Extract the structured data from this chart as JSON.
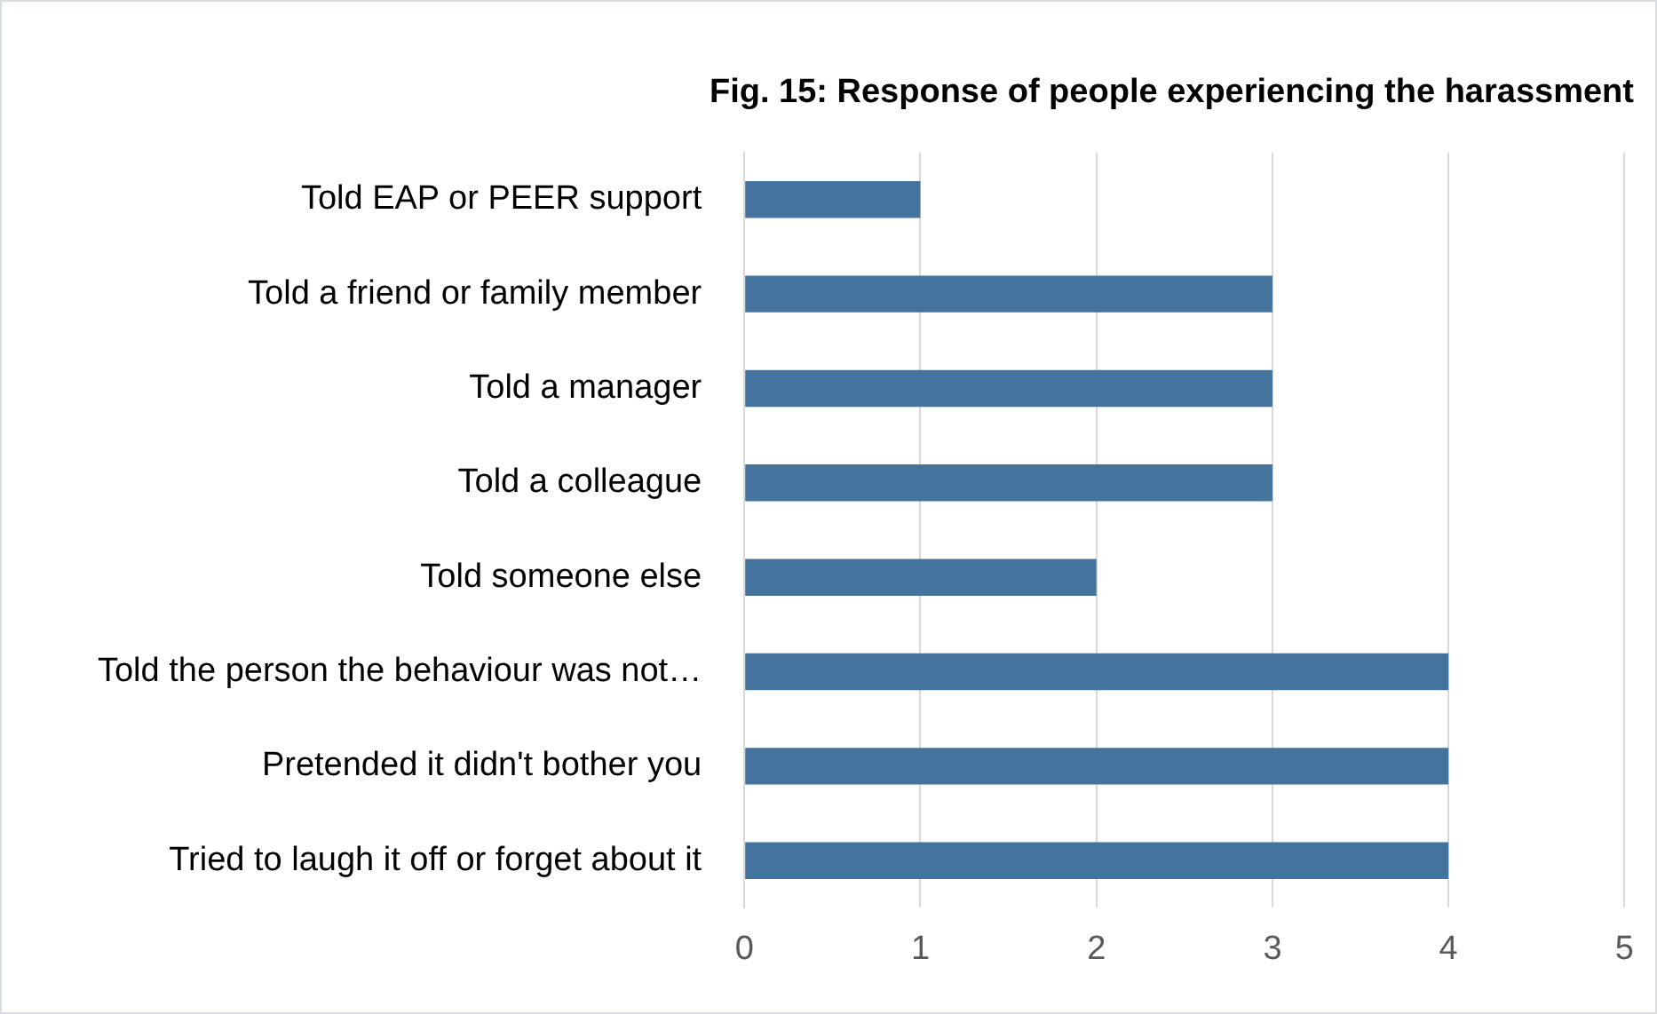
{
  "chart_data": {
    "type": "bar",
    "orientation": "horizontal",
    "title": "Fig. 15: Response of people experiencing the harassment",
    "categories": [
      "Told EAP or PEER support",
      "Told a friend or family member",
      "Told a manager",
      "Told a colleague",
      "Told someone else",
      "Told the person the behaviour was not…",
      "Pretended it didn't bother you",
      "Tried to laugh it off or forget about it"
    ],
    "values": [
      1,
      3,
      3,
      3,
      2,
      4,
      4,
      4
    ],
    "color": "#44739e",
    "xlim": [
      0,
      5
    ],
    "xticks": [
      0,
      1,
      2,
      3,
      4,
      5
    ],
    "grid": "x"
  }
}
